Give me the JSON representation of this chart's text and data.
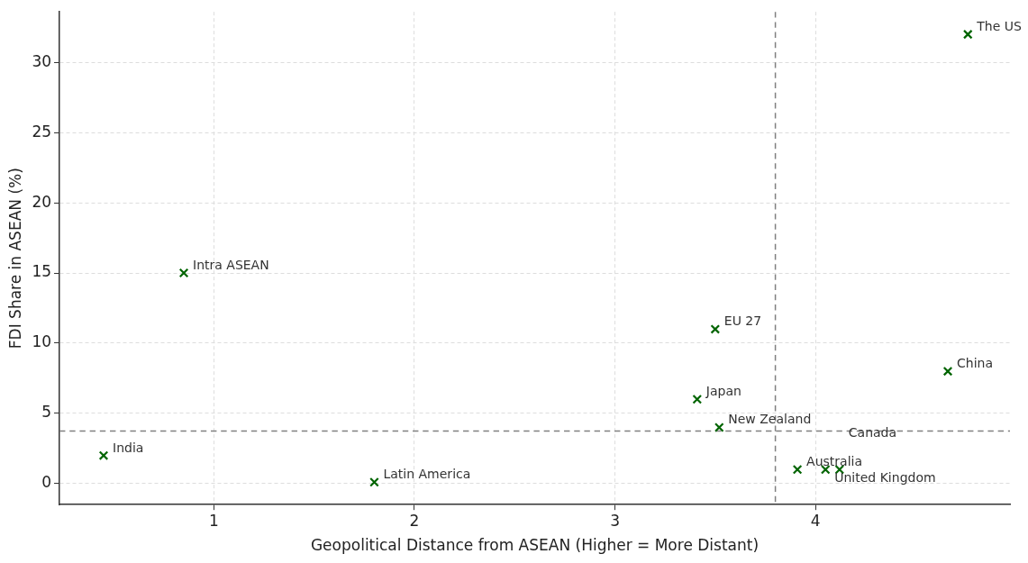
{
  "chart_data": {
    "type": "scatter",
    "xlabel": "Geopolitical Distance from ASEAN (Higher = More Distant)",
    "ylabel": "FDI Share in ASEAN (%)",
    "x": [
      0.45,
      0.85,
      1.8,
      3.41,
      3.5,
      3.52,
      3.91,
      4.05,
      4.12,
      4.66,
      4.76
    ],
    "series": [
      {
        "color": "#006400",
        "values": [
          2,
          15,
          0.1,
          6,
          11,
          4,
          1,
          1,
          1,
          8,
          32
        ]
      }
    ],
    "annotations": [
      {
        "text": "India",
        "x": 0.45,
        "y": 2
      },
      {
        "text": "Intra ASEAN",
        "x": 0.85,
        "y": 15
      },
      {
        "text": "Latin America",
        "x": 1.8,
        "y": 0.1
      },
      {
        "text": "Japan",
        "x": 3.41,
        "y": 6
      },
      {
        "text": "EU 27",
        "x": 3.5,
        "y": 11
      },
      {
        "text": "New Zealand",
        "x": 3.52,
        "y": 4
      },
      {
        "text": "Australia",
        "x": 3.91,
        "y": 1
      },
      {
        "text": "United Kingdom",
        "x": 4.05,
        "y": 1
      },
      {
        "text": "Canada",
        "x": 4.12,
        "y": 1
      },
      {
        "text": "China",
        "x": 4.66,
        "y": 8
      },
      {
        "text": "The US",
        "x": 4.76,
        "y": 32
      }
    ],
    "ref_lines": [
      {
        "axis": "x",
        "value": 3.8,
        "color": "#808080",
        "line_style": "dashed"
      },
      {
        "axis": "y",
        "value": 3.75,
        "color": "#808080",
        "line_style": "dashed"
      }
    ],
    "xlim": [
      0.23,
      4.97
    ],
    "ylim": [
      -1.5,
      33.6
    ],
    "xticks": [
      1,
      2,
      3,
      4
    ],
    "yticks": [
      0,
      5,
      10,
      15,
      20,
      25,
      30
    ],
    "grid": true,
    "legend": false,
    "marker": "cross"
  }
}
